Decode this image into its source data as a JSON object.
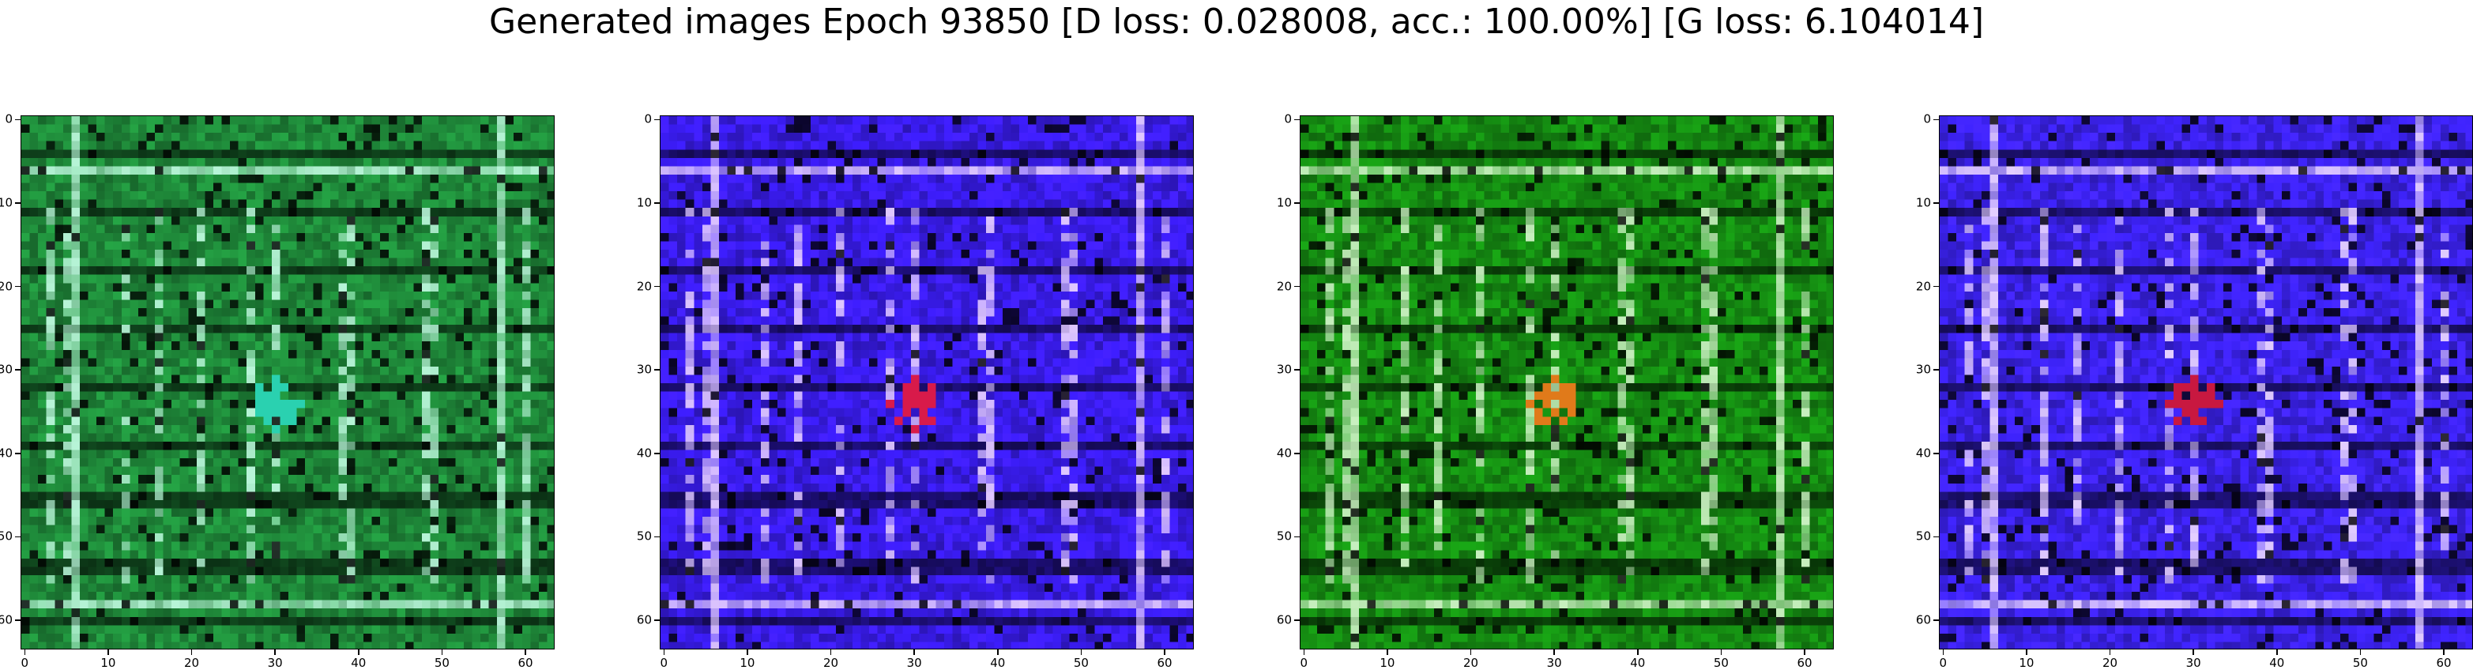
{
  "figure": {
    "suptitle": "Generated images Epoch 93850 [D loss: 0.028008, acc.: 100.00%] [G loss: 6.104014]"
  },
  "panels": [
    {
      "name": "generated-image-1",
      "base_color": "#1f8a3a",
      "highlight_color": "#b8f5d8",
      "accent_color": "#2ad1b0"
    },
    {
      "name": "generated-image-2",
      "base_color": "#3a1cf0",
      "highlight_color": "#e0c8ff",
      "accent_color": "#d81a4a"
    },
    {
      "name": "generated-image-3",
      "base_color": "#158c12",
      "highlight_color": "#c9f0c0",
      "accent_color": "#e07a1a"
    },
    {
      "name": "generated-image-4",
      "base_color": "#3c22f2",
      "highlight_color": "#e4cfff",
      "accent_color": "#c81840"
    }
  ],
  "axes": {
    "x_ticks": [
      0,
      10,
      20,
      30,
      40,
      50,
      60
    ],
    "y_ticks": [
      0,
      10,
      20,
      30,
      40,
      50,
      60
    ],
    "x_range": [
      -0.5,
      63.5
    ],
    "y_range": [
      63.5,
      -0.5
    ]
  }
}
